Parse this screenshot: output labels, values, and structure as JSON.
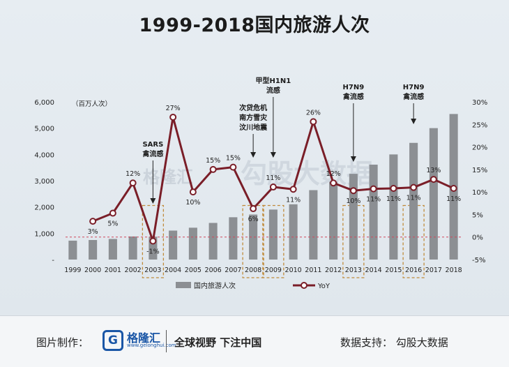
{
  "title": "1999-2018国内旅游人次",
  "chart_data": {
    "type": "bar+line",
    "title": "1999-2018国内旅游人次",
    "unit_label": "（百万人次）",
    "categories": [
      "1999",
      "2000",
      "2001",
      "2002",
      "2003",
      "2004",
      "2005",
      "2006",
      "2007",
      "2008",
      "2009",
      "2010",
      "2011",
      "2012",
      "2013",
      "2014",
      "2015",
      "2016",
      "2017",
      "2018"
    ],
    "y_left": {
      "min": 0,
      "max": 6000,
      "ticks": [
        "6,000",
        "5,000",
        "4,000",
        "3,000",
        "2,000",
        "1,000",
        "-"
      ],
      "tick_values": [
        6000,
        5000,
        4000,
        3000,
        2000,
        1000,
        0
      ]
    },
    "y_right": {
      "min": -5,
      "max": 30,
      "ticks": [
        "30%",
        "25%",
        "20%",
        "15%",
        "10%",
        "5%",
        "0%",
        "-5%"
      ],
      "tick_values": [
        30,
        25,
        20,
        15,
        10,
        5,
        0,
        -5
      ]
    },
    "series": [
      {
        "name": "国内旅游人次",
        "type": "bar",
        "axis": "left",
        "values": [
          719,
          744,
          784,
          878,
          870,
          1102,
          1212,
          1394,
          1610,
          1712,
          1902,
          2103,
          2641,
          2957,
          3262,
          3611,
          4000,
          4440,
          5001,
          5539
        ]
      },
      {
        "name": "YoY",
        "type": "line",
        "axis": "right",
        "values": [
          null,
          3.5,
          5.3,
          12.0,
          -0.9,
          26.6,
          10.0,
          15.0,
          15.5,
          6.3,
          11.1,
          10.6,
          25.6,
          12.0,
          10.3,
          10.7,
          10.8,
          11.0,
          12.8,
          10.8
        ],
        "labels": [
          "",
          "3%",
          "5%",
          "12%",
          "-1%",
          "27%",
          "10%",
          "15%",
          "15%",
          "6%",
          "11%",
          "11%",
          "26%",
          "12%",
          "10%",
          "11%",
          "11%",
          "11%",
          "13%",
          "11%"
        ]
      }
    ],
    "reference_line": {
      "value": 0,
      "axis": "right",
      "style": "dashed",
      "color": "#d0495c"
    },
    "highlights": [
      {
        "year": "2003",
        "lines": [
          "SARS",
          "禽流感"
        ]
      },
      {
        "year": "2008",
        "lines": [
          "次贷危机",
          "南方雪灾",
          "汶川地震"
        ]
      },
      {
        "year": "2009",
        "lines": [
          "甲型H1N1",
          "流感"
        ]
      },
      {
        "year": "2013",
        "lines": [
          "H7N9",
          "禽流感"
        ]
      },
      {
        "year": "2016",
        "lines": [
          "H7N9",
          "禽流感"
        ]
      }
    ],
    "legend": {
      "position": "bottom",
      "bar_label": "国内旅游人次",
      "line_label": "YoY"
    },
    "grid": false
  },
  "colors": {
    "bar": "#8c8f93",
    "line": "#7a1e28",
    "marker_fill": "#ffffff",
    "zero_line": "#d0495c",
    "highlight_box": "#c08a3a"
  },
  "watermark": {
    "left": "格隆汇",
    "right": "勾股大数据"
  },
  "footer": {
    "left_label": "图片制作：",
    "logo_glyph": "G",
    "logo_name": "格隆汇",
    "logo_domain": "www.gelonghui.com",
    "slogan": "全球视野 下注中国",
    "right_label": "数据支持：  勾股大数据"
  }
}
